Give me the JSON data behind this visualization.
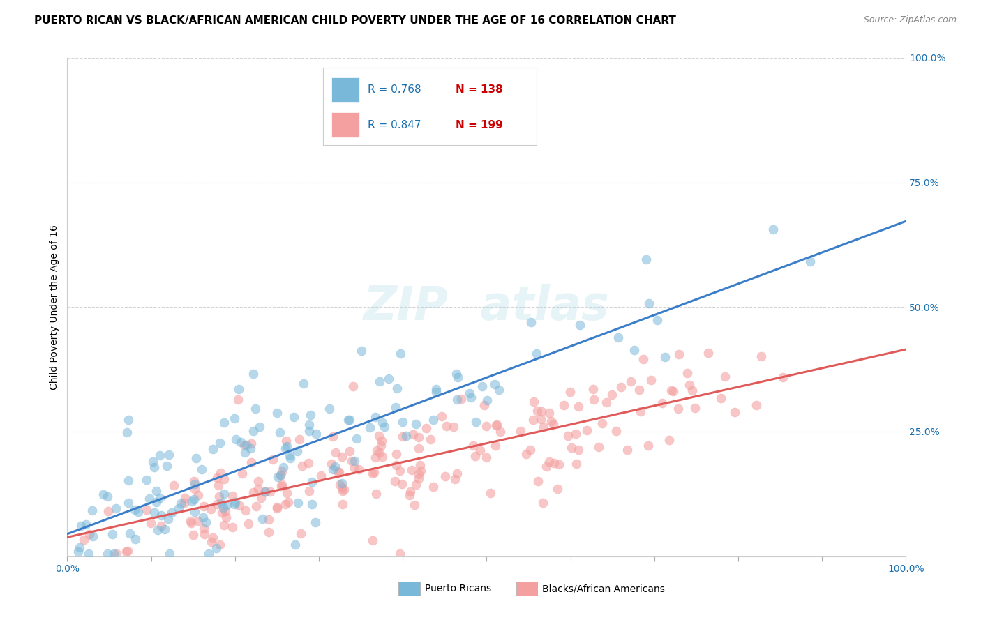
{
  "title": "PUERTO RICAN VS BLACK/AFRICAN AMERICAN CHILD POVERTY UNDER THE AGE OF 16 CORRELATION CHART",
  "source": "Source: ZipAtlas.com",
  "ylabel": "Child Poverty Under the Age of 16",
  "xlim": [
    0.0,
    1.0
  ],
  "ylim": [
    0.0,
    1.0
  ],
  "xticks": [
    0.0,
    0.1,
    0.2,
    0.3,
    0.4,
    0.5,
    0.6,
    0.7,
    0.8,
    0.9,
    1.0
  ],
  "ytick_positions": [
    0.0,
    0.25,
    0.5,
    0.75,
    1.0
  ],
  "ytick_labels": [
    "",
    "25.0%",
    "50.0%",
    "75.0%",
    "100.0%"
  ],
  "xtick_labels_show": {
    "0": "0.0%",
    "10": "100.0%"
  },
  "legend_labels": [
    "Puerto Ricans",
    "Blacks/African Americans"
  ],
  "blue_color": "#7ab8d9",
  "pink_color": "#f4a0a0",
  "blue_line_color": "#3a7dc9",
  "pink_line_color": "#e05a5a",
  "R_blue": 0.768,
  "N_blue": 138,
  "R_pink": 0.847,
  "N_pink": 199,
  "legend_R_color": "#1a6faf",
  "legend_N_color": "#cc0000",
  "background_color": "#ffffff",
  "grid_color": "#aaaaaa",
  "title_fontsize": 11,
  "axis_label_fontsize": 10,
  "tick_fontsize": 10,
  "blue_seed": 42,
  "pink_seed": 99
}
